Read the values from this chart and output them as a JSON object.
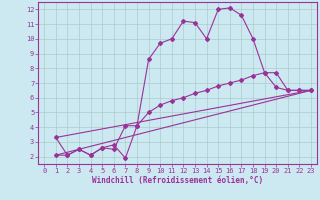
{
  "bg_color": "#cce8f0",
  "grid_color": "#aacccc",
  "line_color": "#993399",
  "marker_color": "#993399",
  "xlabel": "Windchill (Refroidissement éolien,°C)",
  "ylabel_ticks": [
    2,
    3,
    4,
    5,
    6,
    7,
    8,
    9,
    10,
    11,
    12
  ],
  "xticks": [
    0,
    1,
    2,
    3,
    4,
    5,
    6,
    7,
    8,
    9,
    10,
    11,
    12,
    13,
    14,
    15,
    16,
    17,
    18,
    19,
    20,
    21,
    22,
    23
  ],
  "xlim": [
    -0.5,
    23.5
  ],
  "ylim": [
    1.5,
    12.5
  ],
  "line1_x": [
    1,
    2,
    3,
    4,
    5,
    6,
    7,
    8,
    9,
    10,
    11,
    12,
    13,
    14,
    15,
    16,
    17,
    18,
    19,
    20,
    21,
    22,
    23
  ],
  "line1_y": [
    3.3,
    2.1,
    2.5,
    2.1,
    2.6,
    2.8,
    1.9,
    4.1,
    8.6,
    9.7,
    10.0,
    11.2,
    11.1,
    10.0,
    12.0,
    12.1,
    11.6,
    10.0,
    7.7,
    6.7,
    6.5,
    6.5,
    6.5
  ],
  "line2_x": [
    1,
    2,
    3,
    4,
    5,
    6,
    7,
    8,
    9,
    10,
    11,
    12,
    13,
    14,
    15,
    16,
    17,
    18,
    19,
    20,
    21,
    22,
    23
  ],
  "line2_y": [
    2.1,
    2.1,
    2.5,
    2.1,
    2.6,
    2.5,
    4.1,
    4.1,
    5.0,
    5.5,
    5.8,
    6.0,
    6.3,
    6.5,
    6.8,
    7.0,
    7.2,
    7.5,
    7.7,
    7.7,
    6.5,
    6.5,
    6.5
  ],
  "line3_x": [
    1,
    23
  ],
  "line3_y": [
    2.1,
    6.5
  ],
  "line4_x": [
    1,
    23
  ],
  "line4_y": [
    3.3,
    6.5
  ]
}
